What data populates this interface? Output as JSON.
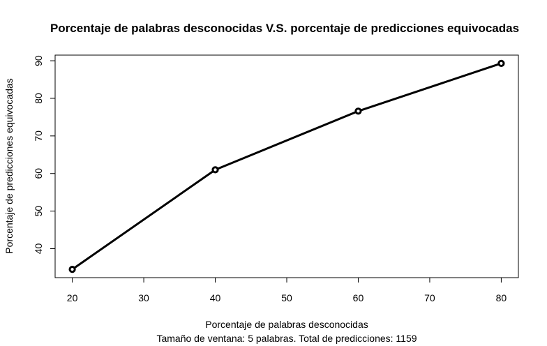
{
  "chart_data": {
    "type": "line",
    "title": "Porcentaje de palabras desconocidas V.S. porcentaje de predicciones equivocadas",
    "xlabel": "Porcentaje de palabras desconocidas",
    "subtitle": "Tamaño de ventana: 5 palabras. Total de predicciones: 1159",
    "ylabel": "Porcentaje de predicciones equivocadas",
    "x": [
      20,
      40,
      60,
      80
    ],
    "y": [
      34.5,
      61.0,
      76.6,
      89.3
    ],
    "xlim": [
      17.6,
      82.4
    ],
    "ylim": [
      32.3,
      91.5
    ],
    "xticks": [
      20,
      30,
      40,
      50,
      60,
      70,
      80
    ],
    "xtick_labels": [
      "20",
      "30",
      "40",
      "50",
      "60",
      "70",
      "80"
    ],
    "yticks": [
      40,
      50,
      60,
      70,
      80,
      90
    ],
    "ytick_labels": [
      "40",
      "50",
      "60",
      "70",
      "80",
      "90"
    ],
    "grid": false,
    "legend": "none",
    "line_color": "#000000",
    "marker": "open-circle"
  }
}
